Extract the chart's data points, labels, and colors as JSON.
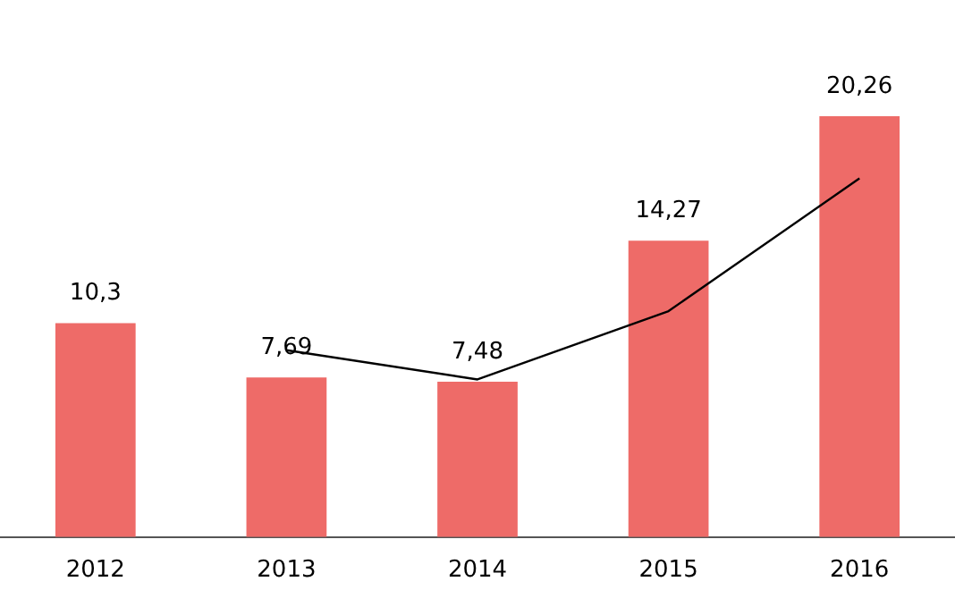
{
  "chart_data": {
    "type": "bar",
    "categories": [
      "2012",
      "2013",
      "2014",
      "2015",
      "2016"
    ],
    "tick_labels": "x",
    "grid": false,
    "legend": false,
    "series": [
      {
        "color": "#ee6b68",
        "values": [
          10.3,
          7.69,
          7.48,
          14.27,
          20.26
        ],
        "value_labels": [
          "10,3",
          "7,69",
          "7,48",
          "14,27",
          "20,26"
        ]
      },
      {
        "type": "line",
        "color": "#000000",
        "marker": "none",
        "values": [
          null,
          9.0,
          7.59,
          10.88,
          17.27
        ]
      }
    ]
  }
}
